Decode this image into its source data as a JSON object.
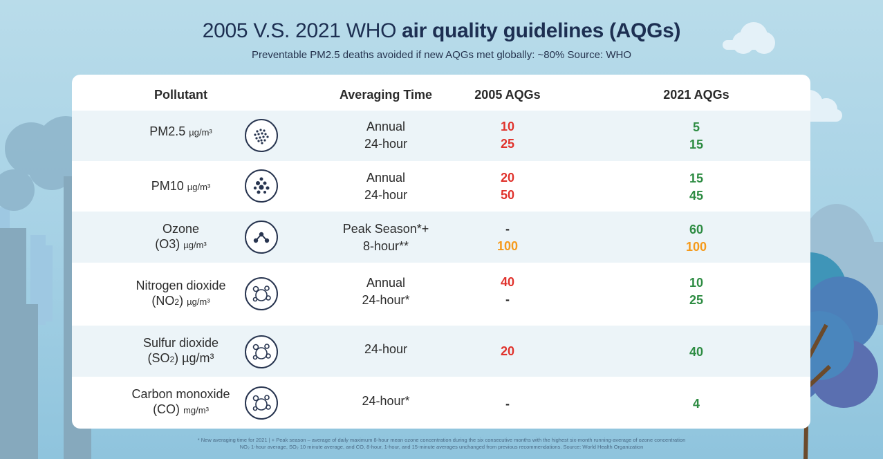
{
  "header": {
    "title_regular": "2005 V.S. 2021 WHO ",
    "title_bold": "air quality guidelines (AQGs)",
    "subtitle": "Preventable PM2.5 deaths avoided if new AQGs met globally: ~80% Source: WHO"
  },
  "table": {
    "columns": [
      "Pollutant",
      "Averaging Time",
      "2005 AQGs",
      "2021 AQGs"
    ],
    "rows": [
      {
        "name": "PM2.5",
        "name2": "",
        "sub": "",
        "unit": "µg/m³",
        "icon": "particle-cluster-icon",
        "avg1": "Annual",
        "avg2": "24-hour",
        "a1": "10",
        "a2": "25",
        "b1": "5",
        "b2": "15"
      },
      {
        "name": "PM10",
        "name2": "",
        "sub": "",
        "unit": "µg/m³",
        "icon": "particle-dots-icon",
        "avg1": "Annual",
        "avg2": "24-hour",
        "a1": "20",
        "a2": "50",
        "b1": "15",
        "b2": "45"
      },
      {
        "name": "Ozone",
        "name2": "(O3)",
        "sub": "",
        "unit": "µg/m³",
        "icon": "molecule-icon",
        "avg1": "Peak Season*+",
        "avg2": "8-hour**",
        "a1": "-",
        "a2": "100",
        "b1": "60",
        "b2": "100"
      },
      {
        "name": "Nitrogen dioxide",
        "name2": "(NO",
        "sub": "2",
        "unit": "µg/m³",
        "icon": "gas-bubbles-icon",
        "avg1": "Annual",
        "avg2": "24-hour*",
        "a1": "40",
        "a2": "-",
        "b1": "10",
        "b2": "25"
      },
      {
        "name": "Sulfur dioxide",
        "name2": "(SO",
        "sub": "2",
        "unit": "µg/m³",
        "icon": "gas-bubbles-icon",
        "avg1": "24-hour",
        "avg2": "",
        "a1": "20",
        "a2": "",
        "b1": "40",
        "b2": ""
      },
      {
        "name": "Carbon monoxide",
        "name2": "(CO)",
        "sub": "",
        "unit": "mg/m³",
        "icon": "gas-bubbles-icon",
        "avg1": "24-hour*",
        "avg2": "",
        "a1": "-",
        "a2": "",
        "b1": "4",
        "b2": ""
      }
    ]
  },
  "footnote": {
    "line1": "* New averaging time for 2021  |  + Peak season – average of daily maximum 8-hour mean ozone concentration during the six consecutive months with the highest six-month running-average of ozone concentration",
    "line2": "NO₂ 1-hour average, SO₂ 10 minute average, and CO, 8-hour, 1-hour, and 15-minute averages unchanged from previous recommendations.  Source: World Health Organization"
  },
  "colors": {
    "exceed_red": "#e0322c",
    "ok_green": "#2e8c43",
    "ozone_orange": "#f59a1b",
    "title_navy": "#1d2f52"
  }
}
